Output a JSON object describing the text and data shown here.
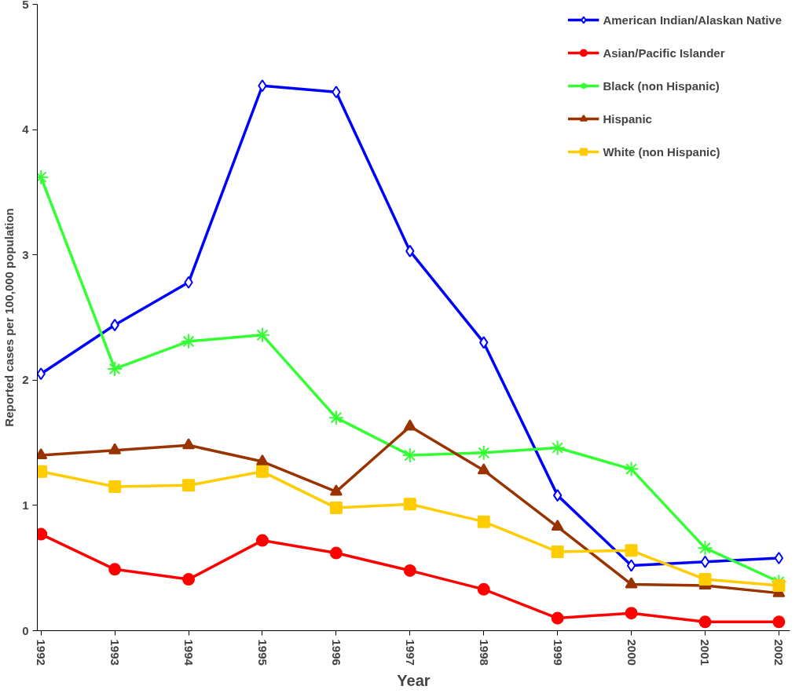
{
  "chart_data": {
    "type": "line",
    "xlabel": "Year",
    "ylabel": "Reported cases per 100,000 population",
    "categories": [
      "1992",
      "1993",
      "1994",
      "1995",
      "1996",
      "1997",
      "1998",
      "1999",
      "2000",
      "2001",
      "2002"
    ],
    "ylim": [
      0,
      5
    ],
    "yticks": [
      0,
      1,
      2,
      3,
      4,
      5
    ],
    "grid": false,
    "legend": "top right",
    "line_style": "solid",
    "series": [
      {
        "name": "American Indian/Alaskan Native",
        "color": "#0000ff",
        "marker": "diamond",
        "values": [
          2.05,
          2.44,
          2.78,
          4.35,
          4.3,
          3.03,
          2.3,
          1.08,
          0.52,
          0.55,
          0.58
        ]
      },
      {
        "name": "Asian/Pacific Islander",
        "color": "#ff0000",
        "marker": "circle",
        "values": [
          0.77,
          0.49,
          0.41,
          0.72,
          0.62,
          0.48,
          0.33,
          0.1,
          0.14,
          0.07,
          0.07
        ]
      },
      {
        "name": "Black (non Hispanic)",
        "color": "#33ff33",
        "marker": "cross",
        "values": [
          3.62,
          2.09,
          2.31,
          2.36,
          1.7,
          1.4,
          1.42,
          1.46,
          1.29,
          0.66,
          0.39
        ]
      },
      {
        "name": "Hispanic",
        "color": "#993300",
        "marker": "triangle",
        "values": [
          1.4,
          1.44,
          1.48,
          1.35,
          1.11,
          1.63,
          1.28,
          0.83,
          0.37,
          0.36,
          0.3
        ]
      },
      {
        "name": "White (non Hispanic)",
        "color": "#ffcc00",
        "marker": "square",
        "values": [
          1.27,
          1.15,
          1.16,
          1.27,
          0.98,
          1.01,
          0.87,
          0.63,
          0.64,
          0.41,
          0.36
        ]
      }
    ]
  }
}
